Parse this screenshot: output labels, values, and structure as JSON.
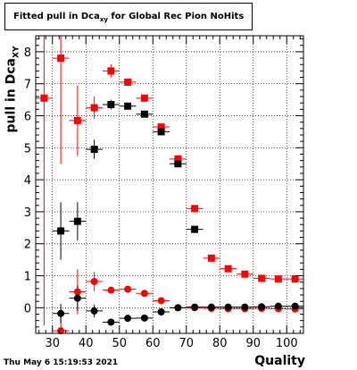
{
  "header": {
    "title_main": "Fitted pull in Dca",
    "title_sub": "xy",
    "title_rest": " for Global Rec Pion NoHits"
  },
  "footer": {
    "timestamp": "Thu May  6 15:19:53 2021"
  },
  "chart_data": {
    "type": "scatter",
    "title": "Fitted pull in Dca_xy for Global Rec Pion NoHits",
    "xlabel": "Quality",
    "ylabel_main": "pull in Dca",
    "ylabel_sub": "XY",
    "xlim": [
      25,
      105
    ],
    "ylim": [
      -0.8,
      8.5
    ],
    "x_ticks": [
      30,
      40,
      50,
      60,
      70,
      80,
      90,
      100
    ],
    "y_ticks": [
      0,
      1,
      2,
      3,
      4,
      5,
      6,
      7,
      8
    ],
    "grid": true,
    "colors": {
      "red": "#ff0000",
      "black": "#000000"
    },
    "series": [
      {
        "color": "#ff0000",
        "marker": "square",
        "points": [
          {
            "x": 27.5,
            "y": 6.55,
            "ey": 7.1
          },
          {
            "x": 32.5,
            "y": 7.8,
            "ey": 3.3
          },
          {
            "x": 37.5,
            "y": 5.85,
            "ey": 1.1
          },
          {
            "x": 42.5,
            "y": 6.25,
            "ey": 0.35
          },
          {
            "x": 47.5,
            "y": 7.4,
            "ey": 0.2
          },
          {
            "x": 52.5,
            "y": 7.05,
            "ey": 0.12
          },
          {
            "x": 57.5,
            "y": 6.55,
            "ey": 0.08
          },
          {
            "x": 62.5,
            "y": 5.65,
            "ey": 0.06
          },
          {
            "x": 67.5,
            "y": 4.65,
            "ey": 0.05
          },
          {
            "x": 72.5,
            "y": 3.1,
            "ey": 0.04
          },
          {
            "x": 77.5,
            "y": 1.55,
            "ey": 0.03
          },
          {
            "x": 82.5,
            "y": 1.22,
            "ey": 0.03
          },
          {
            "x": 87.5,
            "y": 1.05,
            "ey": 0.03
          },
          {
            "x": 92.5,
            "y": 0.92,
            "ey": 0.03
          },
          {
            "x": 97.5,
            "y": 0.9,
            "ey": 0.03
          },
          {
            "x": 102.5,
            "y": 0.9,
            "ey": 0.03
          }
        ]
      },
      {
        "color": "#000000",
        "marker": "square",
        "points": [
          {
            "x": 32.5,
            "y": 2.4,
            "ey": 0.9
          },
          {
            "x": 37.5,
            "y": 2.7,
            "ey": 0.6
          },
          {
            "x": 42.5,
            "y": 4.95,
            "ey": 0.3
          },
          {
            "x": 47.5,
            "y": 6.35,
            "ey": 0.15
          },
          {
            "x": 52.5,
            "y": 6.3,
            "ey": 0.1
          },
          {
            "x": 57.5,
            "y": 6.05,
            "ey": 0.08
          },
          {
            "x": 62.5,
            "y": 5.5,
            "ey": 0.06
          },
          {
            "x": 67.5,
            "y": 4.5,
            "ey": 0.05
          },
          {
            "x": 72.5,
            "y": 2.45,
            "ey": 0.04
          }
        ]
      },
      {
        "color": "#ff0000",
        "marker": "circle",
        "points": [
          {
            "x": 32.5,
            "y": -0.72,
            "ey": 0.5
          },
          {
            "x": 37.5,
            "y": 0.5,
            "ey": 0.7
          },
          {
            "x": 42.5,
            "y": 0.82,
            "ey": 0.3
          },
          {
            "x": 47.5,
            "y": 0.55,
            "ey": 0.1
          },
          {
            "x": 52.5,
            "y": 0.58,
            "ey": 0.06
          },
          {
            "x": 57.5,
            "y": 0.45,
            "ey": 0.05
          },
          {
            "x": 62.5,
            "y": 0.22,
            "ey": 0.04
          },
          {
            "x": 67.5,
            "y": 0.0,
            "ey": 0.03
          },
          {
            "x": 72.5,
            "y": 0.0,
            "ey": 0.03
          },
          {
            "x": 77.5,
            "y": -0.02,
            "ey": 0.03
          },
          {
            "x": 82.5,
            "y": -0.03,
            "ey": 0.03
          },
          {
            "x": 87.5,
            "y": -0.03,
            "ey": 0.03
          },
          {
            "x": 92.5,
            "y": -0.02,
            "ey": 0.03
          },
          {
            "x": 97.5,
            "y": -0.03,
            "ey": 0.03
          },
          {
            "x": 102.5,
            "y": -0.04,
            "ey": 0.03
          }
        ]
      },
      {
        "color": "#000000",
        "marker": "circle",
        "points": [
          {
            "x": 32.5,
            "y": -0.18,
            "ey": 0.3
          },
          {
            "x": 37.5,
            "y": 0.3,
            "ey": 0.4
          },
          {
            "x": 42.5,
            "y": -0.1,
            "ey": 0.2
          },
          {
            "x": 47.5,
            "y": -0.45,
            "ey": 0.08
          },
          {
            "x": 52.5,
            "y": -0.33,
            "ey": 0.06
          },
          {
            "x": 57.5,
            "y": -0.32,
            "ey": 0.05
          },
          {
            "x": 62.5,
            "y": -0.13,
            "ey": 0.04
          },
          {
            "x": 67.5,
            "y": 0.0,
            "ey": 0.03
          },
          {
            "x": 72.5,
            "y": 0.02,
            "ey": 0.03
          },
          {
            "x": 77.5,
            "y": 0.02,
            "ey": 0.03
          },
          {
            "x": 82.5,
            "y": 0.02,
            "ey": 0.03
          },
          {
            "x": 87.5,
            "y": 0.02,
            "ey": 0.03
          },
          {
            "x": 92.5,
            "y": 0.03,
            "ey": 0.03
          },
          {
            "x": 97.5,
            "y": 0.05,
            "ey": 0.03
          },
          {
            "x": 102.5,
            "y": 0.05,
            "ey": 0.03
          }
        ]
      }
    ]
  }
}
